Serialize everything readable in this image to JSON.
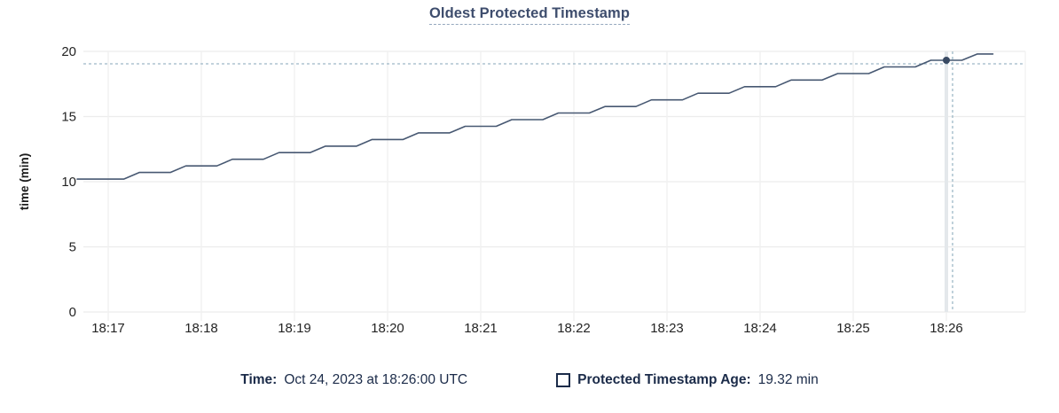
{
  "header": {
    "title": "Oldest Protected Timestamp"
  },
  "legend": {
    "time_label": "Time:",
    "time_value": "Oct 24, 2023 at 18:26:00 UTC",
    "series_label": "Protected Timestamp Age:",
    "series_value": "19.32 min"
  },
  "chart_data": {
    "type": "line",
    "title": "Oldest Protected Timestamp",
    "xlabel": "",
    "ylabel": "time (min)",
    "ylim": [
      0,
      20
    ],
    "y_ticks": [
      0,
      5,
      10,
      15,
      20
    ],
    "x_ticks": [
      "18:17",
      "18:18",
      "18:19",
      "18:20",
      "18:21",
      "18:22",
      "18:23",
      "18:24",
      "18:25",
      "18:26"
    ],
    "x_start": "18:16:40",
    "x_end": "18:26:30",
    "grid": true,
    "legend_position": "bottom",
    "line_style": "stepped-rising",
    "series": [
      {
        "name": "Protected Timestamp Age",
        "unit": "min",
        "color": "#475872",
        "points": [
          [
            "18:16:40",
            10.2
          ],
          [
            "18:16:50",
            10.2
          ],
          [
            "18:17:00",
            10.2
          ],
          [
            "18:17:10",
            10.2
          ],
          [
            "18:17:20",
            10.71
          ],
          [
            "18:17:30",
            10.71
          ],
          [
            "18:17:40",
            10.71
          ],
          [
            "18:17:50",
            11.21
          ],
          [
            "18:18:00",
            11.21
          ],
          [
            "18:18:10",
            11.21
          ],
          [
            "18:18:20",
            11.72
          ],
          [
            "18:18:30",
            11.72
          ],
          [
            "18:18:40",
            11.72
          ],
          [
            "18:18:50",
            12.23
          ],
          [
            "18:19:00",
            12.23
          ],
          [
            "18:19:10",
            12.23
          ],
          [
            "18:19:20",
            12.73
          ],
          [
            "18:19:30",
            12.73
          ],
          [
            "18:19:40",
            12.73
          ],
          [
            "18:19:50",
            13.24
          ],
          [
            "18:20:00",
            13.24
          ],
          [
            "18:20:10",
            13.24
          ],
          [
            "18:20:20",
            13.75
          ],
          [
            "18:20:30",
            13.75
          ],
          [
            "18:20:40",
            13.75
          ],
          [
            "18:20:50",
            14.25
          ],
          [
            "18:21:00",
            14.25
          ],
          [
            "18:21:10",
            14.25
          ],
          [
            "18:21:20",
            14.76
          ],
          [
            "18:21:30",
            14.76
          ],
          [
            "18:21:40",
            14.76
          ],
          [
            "18:21:50",
            15.27
          ],
          [
            "18:22:00",
            15.27
          ],
          [
            "18:22:10",
            15.27
          ],
          [
            "18:22:20",
            15.77
          ],
          [
            "18:22:30",
            15.77
          ],
          [
            "18:22:40",
            15.77
          ],
          [
            "18:22:50",
            16.28
          ],
          [
            "18:23:00",
            16.28
          ],
          [
            "18:23:10",
            16.28
          ],
          [
            "18:23:20",
            16.79
          ],
          [
            "18:23:30",
            16.79
          ],
          [
            "18:23:40",
            16.79
          ],
          [
            "18:23:50",
            17.29
          ],
          [
            "18:24:00",
            17.29
          ],
          [
            "18:24:10",
            17.29
          ],
          [
            "18:24:20",
            17.8
          ],
          [
            "18:24:30",
            17.8
          ],
          [
            "18:24:40",
            17.8
          ],
          [
            "18:24:50",
            18.3
          ],
          [
            "18:25:00",
            18.3
          ],
          [
            "18:25:10",
            18.3
          ],
          [
            "18:25:20",
            18.81
          ],
          [
            "18:25:30",
            18.81
          ],
          [
            "18:25:40",
            18.81
          ],
          [
            "18:25:50",
            19.32
          ],
          [
            "18:26:00",
            19.32
          ],
          [
            "18:26:10",
            19.32
          ],
          [
            "18:26:20",
            19.8
          ],
          [
            "18:26:30",
            19.8
          ]
        ]
      }
    ],
    "crosshair": {
      "time": "18:26:00",
      "value": 19.32,
      "x_label": "18:26"
    },
    "colors": {
      "line": "#475872",
      "dot": "#394a63",
      "crosshair_dash": "#9db8c6",
      "hover_band": "#e4e8eb",
      "grid_horizontal": "#ececec",
      "grid_vertical": "#f1f1f1",
      "axis_text": "#242424",
      "title_text": "#3e4d6d",
      "legend_text": "#1b2b49"
    }
  }
}
